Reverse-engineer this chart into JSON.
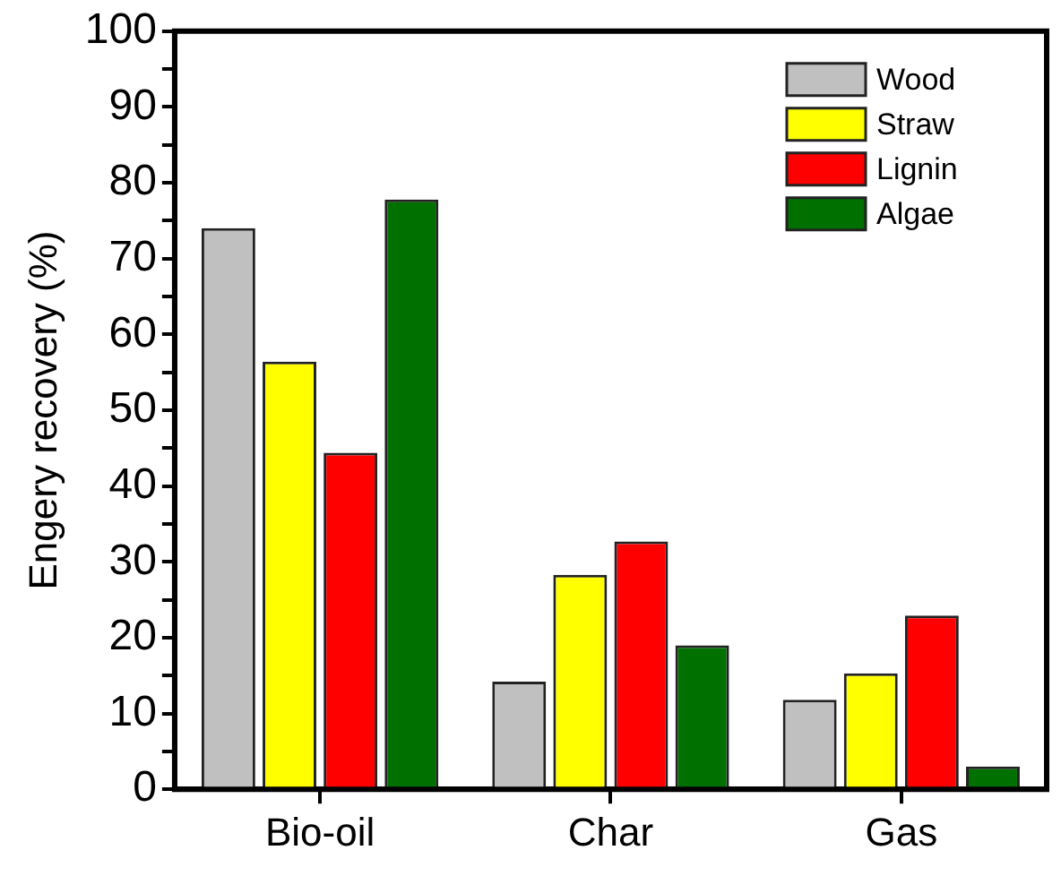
{
  "chart_data": {
    "type": "bar",
    "ylabel": "Engery recovery (%)",
    "categories": [
      "Bio-oil",
      "Char",
      "Gas"
    ],
    "series": [
      {
        "name": "Wood",
        "color": "#c0c0c0",
        "values": [
          74,
          14.2,
          11.8
        ]
      },
      {
        "name": "Straw",
        "color": "#ffff00",
        "values": [
          56.4,
          28.3,
          15.3
        ]
      },
      {
        "name": "Lignin",
        "color": "#ff0000",
        "values": [
          44.4,
          32.7,
          22.9
        ]
      },
      {
        "name": "Algae",
        "color": "#007000",
        "values": [
          77.8,
          19,
          3
        ]
      }
    ],
    "ylim": [
      0,
      100
    ],
    "yticks": [
      0,
      {
        "value": 5,
        "label": null
      },
      10,
      {
        "value": 15,
        "label": null
      },
      20,
      {
        "value": 25,
        "label": null
      },
      30,
      {
        "value": 35,
        "label": null
      },
      40,
      {
        "value": 45,
        "label": null
      },
      50,
      {
        "value": 55,
        "label": null
      },
      60,
      {
        "value": 65,
        "label": null
      },
      70,
      {
        "value": 75,
        "label": null
      },
      80,
      {
        "value": 85,
        "label": null
      },
      90,
      {
        "value": 95,
        "label": null
      },
      100
    ],
    "grid": false,
    "legend": "top right"
  }
}
